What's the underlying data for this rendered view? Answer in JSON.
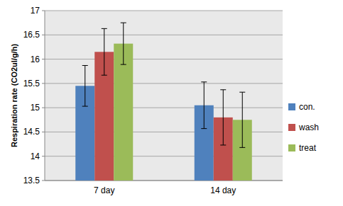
{
  "chart_data": {
    "type": "bar",
    "y_label": "Respiration rate (CO2ul/g/h)",
    "categories": [
      "7 day",
      "14 day"
    ],
    "series": [
      {
        "name": "con.",
        "color": "#4f81bd",
        "values": [
          15.45,
          15.05
        ],
        "errors": [
          0.42,
          0.48
        ]
      },
      {
        "name": "wash",
        "color": "#c0504d",
        "values": [
          16.15,
          14.8
        ],
        "errors": [
          0.48,
          0.57
        ]
      },
      {
        "name": "treat",
        "color": "#9bbb59",
        "values": [
          16.32,
          14.75
        ],
        "errors": [
          0.43,
          0.57
        ]
      }
    ],
    "ylim": [
      13.5,
      17
    ],
    "yticks": [
      13.5,
      14,
      14.5,
      15,
      15.5,
      16,
      16.5,
      17
    ],
    "grid": true,
    "legend": "right"
  }
}
